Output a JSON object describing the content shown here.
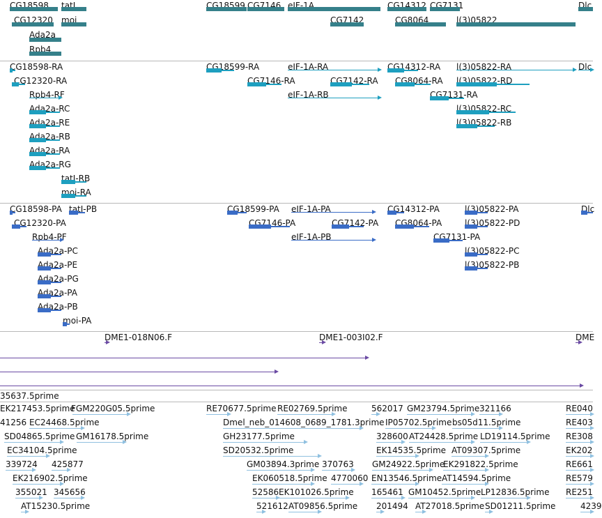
{
  "colors": {
    "gene": "#35808a",
    "transcript": "#1e9fbf",
    "cds": "#3a6cc6",
    "clone": "#6a4aa3",
    "est": "#8fc0e0"
  },
  "tracks": [
    {
      "id": "gene",
      "features": [
        {
          "label": "CG18598"
        },
        {
          "label": "tatI"
        },
        {
          "label": "CG12320"
        },
        {
          "label": "moi"
        },
        {
          "label": "Ada2a"
        },
        {
          "label": "Rpb4"
        },
        {
          "label": "CG18599"
        },
        {
          "label": "CG7146"
        },
        {
          "label": "eIF-1A"
        },
        {
          "label": "CG7142"
        },
        {
          "label": "CG14312"
        },
        {
          "label": "CG7131"
        },
        {
          "label": "CG8064"
        },
        {
          "label": "l(3)05822"
        },
        {
          "label": "Dlc"
        }
      ]
    },
    {
      "id": "transcript",
      "features": [
        {
          "label": "CG18598-RA"
        },
        {
          "label": "CG12320-RA"
        },
        {
          "label": "Rpb4-RF"
        },
        {
          "label": "Ada2a-RC"
        },
        {
          "label": "Ada2a-RE"
        },
        {
          "label": "Ada2a-RB"
        },
        {
          "label": "Ada2a-RA"
        },
        {
          "label": "Ada2a-RG"
        },
        {
          "label": "tatI-RB"
        },
        {
          "label": "moi-RA"
        },
        {
          "label": "CG18599-RA"
        },
        {
          "label": "CG7146-RA"
        },
        {
          "label": "eIF-1A-RA"
        },
        {
          "label": "eIF-1A-RB"
        },
        {
          "label": "CG7142-RA"
        },
        {
          "label": "CG14312-RA"
        },
        {
          "label": "CG8064-RA"
        },
        {
          "label": "CG7131-RA"
        },
        {
          "label": "l(3)05822-RA"
        },
        {
          "label": "l(3)05822-RD"
        },
        {
          "label": "l(3)05822-RC"
        },
        {
          "label": "l(3)05822-RB"
        },
        {
          "label": "Dlc"
        }
      ]
    },
    {
      "id": "cds",
      "features": [
        {
          "label": "CG18598-PA"
        },
        {
          "label": "tatI-PB"
        },
        {
          "label": "CG12320-PA"
        },
        {
          "label": "Rpb4-PF"
        },
        {
          "label": "Ada2a-PC"
        },
        {
          "label": "Ada2a-PE"
        },
        {
          "label": "Ada2a-PG"
        },
        {
          "label": "Ada2a-PA"
        },
        {
          "label": "Ada2a-PB"
        },
        {
          "label": "moi-PA"
        },
        {
          "label": "CG18599-PA"
        },
        {
          "label": "CG7146-PA"
        },
        {
          "label": "eIF-1A-PA"
        },
        {
          "label": "eIF-1A-PB"
        },
        {
          "label": "CG7142-PA"
        },
        {
          "label": "CG14312-PA"
        },
        {
          "label": "CG8064-PA"
        },
        {
          "label": "CG7131-PA"
        },
        {
          "label": "l(3)05822-PA"
        },
        {
          "label": "l(3)05822-PD"
        },
        {
          "label": "l(3)05822-PC"
        },
        {
          "label": "l(3)05822-PB"
        },
        {
          "label": "Dlc"
        }
      ]
    },
    {
      "id": "clone",
      "features": [
        {
          "label": "DME1-018N06.F"
        },
        {
          "label": "DME1-003I02.F"
        },
        {
          "label": "DME"
        },
        {
          "label": ""
        },
        {
          "label": ""
        },
        {
          "label": ""
        }
      ]
    },
    {
      "id": "clone2",
      "features": [
        {
          "label": "35637.5prime"
        }
      ]
    },
    {
      "id": "est",
      "features": [
        {
          "label": "EK217453.5prime"
        },
        {
          "label": "FGM220G05.5prime"
        },
        {
          "label": "RE70677.5prime"
        },
        {
          "label": "RE02769.5prime"
        },
        {
          "label": "562017"
        },
        {
          "label": "GM23794.5prime"
        },
        {
          "label": "321166"
        },
        {
          "label": "RE040"
        },
        {
          "label": "41256"
        },
        {
          "label": "EC24468.5prime"
        },
        {
          "label": "Dmel_neb_014608_0689_1781.3prime"
        },
        {
          "label": "IP05702.5prime"
        },
        {
          "label": "bs05d11.5prime"
        },
        {
          "label": "RE403"
        },
        {
          "label": "SD04865.5prime"
        },
        {
          "label": "GM16178.5prime"
        },
        {
          "label": "GH23177.5prime"
        },
        {
          "label": "328600"
        },
        {
          "label": "AT24428.5prime"
        },
        {
          "label": "LD19114.5prime"
        },
        {
          "label": "RE308"
        },
        {
          "label": "EC34104.5prime"
        },
        {
          "label": "SD20532.5prime"
        },
        {
          "label": "EK14535.5prime"
        },
        {
          "label": "AT09307.5prime"
        },
        {
          "label": "EK202"
        },
        {
          "label": "339724"
        },
        {
          "label": "425877"
        },
        {
          "label": "GM03894.3prime"
        },
        {
          "label": "370763"
        },
        {
          "label": "GM24922.5prime"
        },
        {
          "label": "EK291822.5prime"
        },
        {
          "label": "RE661"
        },
        {
          "label": "EK216902.5prime"
        },
        {
          "label": "EK060518.5prime"
        },
        {
          "label": "4770060"
        },
        {
          "label": "EN13546.5prime"
        },
        {
          "label": "AT14594.5prime"
        },
        {
          "label": "RE579"
        },
        {
          "label": "355021"
        },
        {
          "label": "345656"
        },
        {
          "label": "52586"
        },
        {
          "label": "EK101026.5prime"
        },
        {
          "label": "165461"
        },
        {
          "label": "GM10452.5prime"
        },
        {
          "label": "LP12836.5prime"
        },
        {
          "label": "RE251"
        },
        {
          "label": "AT15230.5prime"
        },
        {
          "label": "521612"
        },
        {
          "label": "AT09856.5prime"
        },
        {
          "label": "201494"
        },
        {
          "label": "AT27018.5prime"
        },
        {
          "label": "SD01211.5prime"
        },
        {
          "label": "4239"
        }
      ]
    }
  ]
}
